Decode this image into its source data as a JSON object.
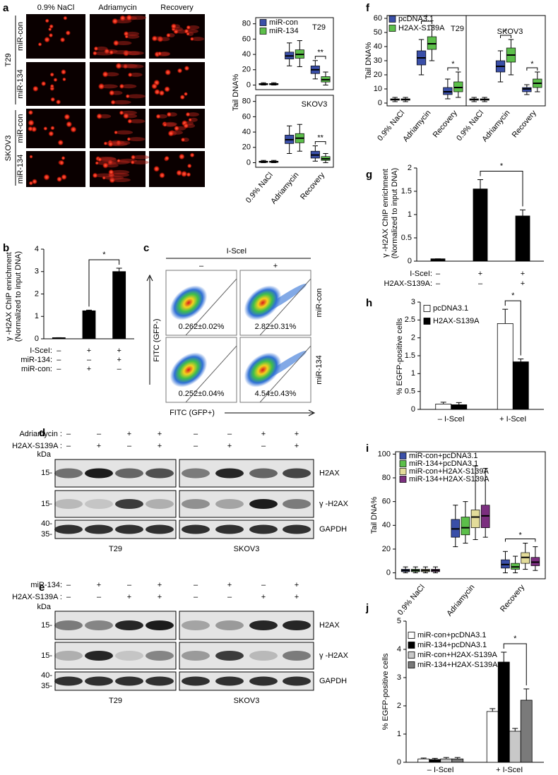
{
  "panel_labels": [
    "a",
    "b",
    "c",
    "d",
    "e",
    "f",
    "g",
    "h",
    "i",
    "j"
  ],
  "comet_assay": {
    "columns": [
      "0.9% NaCl",
      "Adriamycin",
      "Recovery"
    ],
    "rows": [
      "miR-con",
      "miR-134",
      "miR-con",
      "miR-134"
    ],
    "groups": [
      "T29",
      "SKOV3"
    ]
  },
  "flow": {
    "header": "I-SceI",
    "columns": [
      "–",
      "+"
    ],
    "rows": [
      "miR-con",
      "miR-134"
    ],
    "values": [
      [
        "0.262±0.02%",
        "2.82±0.31%"
      ],
      [
        "0.252±0.04%",
        "4.54±0.43%"
      ]
    ],
    "y_label": "FITC (GFP-)",
    "x_label": "FITC (GFP+)"
  },
  "western_d": {
    "conditions": [
      {
        "label": "Adriamycin :",
        "marks": [
          "–",
          "–",
          "+",
          "+",
          "–",
          "–",
          "+",
          "+"
        ]
      },
      {
        "label": "H2AX-S139A :",
        "marks": [
          "–",
          "+",
          "–",
          "+",
          "–",
          "+",
          "–",
          "+"
        ]
      }
    ],
    "unit": "kDa",
    "rows": [
      {
        "protein": "H2AX",
        "markers": [
          "15-"
        ]
      },
      {
        "protein": "γ -H2AX",
        "markers": [
          "15-"
        ]
      },
      {
        "protein": "GAPDH",
        "markers": [
          "40-",
          "35-"
        ]
      }
    ],
    "cell_lines": [
      "T29",
      "SKOV3"
    ]
  },
  "western_e": {
    "conditions": [
      {
        "label": "miR-134:",
        "marks": [
          "–",
          "+",
          "–",
          "+",
          "–",
          "+",
          "–",
          "+"
        ]
      },
      {
        "label": "H2AX-S139A :",
        "marks": [
          "–",
          "–",
          "+",
          "+",
          "–",
          "–",
          "+",
          "+"
        ]
      }
    ],
    "unit": "kDa",
    "rows": [
      {
        "protein": "H2AX",
        "markers": [
          "15-"
        ]
      },
      {
        "protein": "γ -H2AX",
        "markers": [
          "15-"
        ]
      },
      {
        "protein": "GAPDH",
        "markers": [
          "40-",
          "35-"
        ]
      }
    ],
    "cell_lines": [
      "T29",
      "SKOV3"
    ]
  },
  "chart_data": [
    {
      "type": "box",
      "title": "T29",
      "y_label": [
        "Tail DNA%"
      ],
      "ylim": [
        -6,
        88
      ],
      "yticks": [
        0,
        20,
        40,
        60,
        80
      ],
      "annotations": [
        "**"
      ],
      "series": [
        {
          "name": "miR-con",
          "color": "#3a4fa8",
          "values": [
            {
              "min": 0,
              "q1": 0.5,
              "median": 1,
              "q3": 2,
              "max": 3
            },
            {
              "min": 25,
              "q1": 34,
              "median": 38,
              "q3": 43,
              "max": 55
            },
            {
              "min": 8,
              "q1": 15,
              "median": 20,
              "q3": 25,
              "max": 32
            }
          ]
        },
        {
          "name": "miR-134",
          "color": "#5cbf4a",
          "values": [
            {
              "min": 0,
              "q1": 0.5,
              "median": 1,
              "q3": 2,
              "max": 3
            },
            {
              "min": 24,
              "q1": 35,
              "median": 40,
              "q3": 46,
              "max": 58
            },
            {
              "min": 0,
              "q1": 4,
              "median": 7,
              "q3": 11,
              "max": 17
            }
          ]
        }
      ]
    },
    {
      "type": "box",
      "title": "SKOV3",
      "categories": [
        "0.9% NaCl",
        "Adriamycin",
        "Recovery"
      ],
      "ylim": [
        -6,
        88
      ],
      "yticks": [
        0,
        20,
        40,
        60,
        80
      ],
      "annotations": [
        "**"
      ],
      "series": [
        {
          "color": "#3a4fa8",
          "values": [
            {
              "min": 0,
              "q1": 0.5,
              "median": 1,
              "q3": 2,
              "max": 3
            },
            {
              "min": 12,
              "q1": 25,
              "median": 30,
              "q3": 36,
              "max": 48
            },
            {
              "min": 2,
              "q1": 6,
              "median": 10,
              "q3": 15,
              "max": 22
            }
          ]
        },
        {
          "color": "#5cbf4a",
          "values": [
            {
              "min": 0,
              "q1": 0.5,
              "median": 1,
              "q3": 2,
              "max": 3
            },
            {
              "min": 15,
              "q1": 26,
              "median": 32,
              "q3": 38,
              "max": 50
            },
            {
              "min": 0,
              "q1": 3,
              "median": 5,
              "q3": 8,
              "max": 12
            }
          ]
        }
      ]
    },
    {
      "type": "box",
      "title": "T29",
      "y_label": [
        "Tail DNA%"
      ],
      "categories": [
        "0.9% NaCl",
        "Adriamycin",
        "Recovery"
      ],
      "ylim": [
        -2,
        62
      ],
      "yticks": [
        0,
        10,
        20,
        30,
        40,
        50,
        60
      ],
      "annotations": [
        "*",
        "*"
      ],
      "series": [
        {
          "name": "pcDNA3.1",
          "color": "#3a4fa8",
          "values": [
            {
              "min": 1,
              "q1": 2,
              "median": 2.5,
              "q3": 3,
              "max": 4
            },
            {
              "min": 20,
              "q1": 27,
              "median": 32,
              "q3": 37,
              "max": 45
            },
            {
              "min": 3,
              "q1": 6,
              "median": 8,
              "q3": 11,
              "max": 17
            }
          ]
        },
        {
          "name": "H2AX-S139A",
          "color": "#5cbf4a",
          "values": [
            {
              "min": 1,
              "q1": 2,
              "median": 2.5,
              "q3": 3,
              "max": 4
            },
            {
              "min": 30,
              "q1": 38,
              "median": 42,
              "q3": 47,
              "max": 55
            },
            {
              "min": 4,
              "q1": 8,
              "median": 11,
              "q3": 15,
              "max": 22
            }
          ]
        }
      ]
    },
    {
      "type": "box",
      "title": "SKOV3",
      "categories": [
        "0.9% NaCl",
        "Adriamycin",
        "Recovery"
      ],
      "ylim": [
        -2,
        62
      ],
      "annotations": [
        "*",
        "*"
      ],
      "series": [
        {
          "color": "#3a4fa8",
          "values": [
            {
              "min": 1,
              "q1": 2,
              "median": 2.5,
              "q3": 3,
              "max": 4
            },
            {
              "min": 15,
              "q1": 22,
              "median": 26,
              "q3": 30,
              "max": 37
            },
            {
              "min": 6,
              "q1": 8,
              "median": 10,
              "q3": 11,
              "max": 13
            }
          ]
        },
        {
          "color": "#5cbf4a",
          "values": [
            {
              "min": 1,
              "q1": 2,
              "median": 2.5,
              "q3": 3,
              "max": 4
            },
            {
              "min": 20,
              "q1": 29,
              "median": 34,
              "q3": 39,
              "max": 45
            },
            {
              "min": 8,
              "q1": 11,
              "median": 14,
              "q3": 17,
              "max": 22
            }
          ]
        }
      ]
    },
    {
      "type": "box",
      "y_label": [
        "Tail DNA%"
      ],
      "categories": [
        "0.9% NaCl",
        "Adriamycin",
        "Recovery"
      ],
      "ylim": [
        -5,
        102
      ],
      "yticks": [
        0,
        20,
        40,
        60,
        80,
        100
      ],
      "annotations": [
        "*"
      ],
      "series": [
        {
          "name": "miR-con+pcDNA3.1",
          "color": "#3a4fa8",
          "values": [
            {
              "min": 0,
              "q1": 1,
              "median": 2,
              "q3": 3,
              "max": 5
            },
            {
              "min": 22,
              "q1": 30,
              "median": 37,
              "q3": 45,
              "max": 57
            },
            {
              "min": 0,
              "q1": 4,
              "median": 7,
              "q3": 11,
              "max": 18
            }
          ]
        },
        {
          "name": "miR-134+pcDNA3.1",
          "color": "#5cbf4a",
          "values": [
            {
              "min": 0,
              "q1": 1,
              "median": 2,
              "q3": 3,
              "max": 5
            },
            {
              "min": 25,
              "q1": 32,
              "median": 38,
              "q3": 47,
              "max": 60
            },
            {
              "min": 0,
              "q1": 3,
              "median": 5,
              "q3": 8,
              "max": 14
            }
          ]
        },
        {
          "name": "miR-con+H2AX-S139A",
          "color": "#e3dc9a",
          "values": [
            {
              "min": 0,
              "q1": 1,
              "median": 2,
              "q3": 3,
              "max": 5
            },
            {
              "min": 28,
              "q1": 38,
              "median": 47,
              "q3": 53,
              "max": 90
            },
            {
              "min": 3,
              "q1": 8,
              "median": 13,
              "q3": 17,
              "max": 25
            }
          ]
        },
        {
          "name": "miR-134+H2AX-S139A",
          "color": "#7b2f7f",
          "values": [
            {
              "min": 0,
              "q1": 1,
              "median": 2,
              "q3": 3,
              "max": 5
            },
            {
              "min": 30,
              "q1": 38,
              "median": 48,
              "q3": 57,
              "max": 88
            },
            {
              "min": 2,
              "q1": 6,
              "median": 9,
              "q3": 13,
              "max": 22
            }
          ]
        }
      ]
    },
    {
      "type": "bar",
      "y_label": [
        "γ -H2AX ChIP enrichment",
        "(Normalized to input DNA)"
      ],
      "ylim": [
        0,
        4
      ],
      "yticks": [
        0,
        1,
        2,
        3,
        4
      ],
      "values": [
        0.05,
        1.25,
        3.0
      ],
      "errors": [
        0,
        0.03,
        0.15
      ],
      "color": "#000000",
      "annotations": [
        "*"
      ],
      "conditions": [
        {
          "label": "I-SceI:",
          "marks": [
            "–",
            "+",
            "+"
          ]
        },
        {
          "label": "miR-134:",
          "marks": [
            "–",
            "–",
            "+"
          ]
        },
        {
          "label": "miR-con:",
          "marks": [
            "–",
            "+",
            "–"
          ]
        }
      ]
    },
    {
      "type": "bar",
      "y_label": [
        "γ -H2AX ChIP enrichment",
        "(Normalized to input DNA)"
      ],
      "ylim": [
        0,
        2
      ],
      "yticks": [
        0,
        0.5,
        1,
        1.5,
        2
      ],
      "values": [
        0.05,
        1.55,
        0.97
      ],
      "errors": [
        0,
        0.2,
        0.13
      ],
      "color": "#000000",
      "annotations": [
        "*"
      ],
      "conditions": [
        {
          "label": "I-SceI:",
          "marks": [
            "–",
            "+",
            "+"
          ]
        },
        {
          "label": "H2AX-S139A:",
          "marks": [
            "–",
            "–",
            "+"
          ]
        }
      ]
    },
    {
      "type": "bar",
      "y_label": [
        "% EGFP-positive cells"
      ],
      "ylim": [
        0,
        3
      ],
      "yticks": [
        0,
        0.5,
        1,
        1.5,
        2,
        2.5,
        3
      ],
      "categories": [
        "– I-SceI",
        "+ I-SceI"
      ],
      "annotations": [
        "*"
      ],
      "series": [
        {
          "name": "pcDNA3.1",
          "color": "#ffffff",
          "values": [
            0.15,
            2.4
          ],
          "errors": [
            0.05,
            0.4
          ]
        },
        {
          "name": "H2AX-S139A",
          "color": "#000000",
          "values": [
            0.13,
            1.33
          ],
          "errors": [
            0.06,
            0.08
          ]
        }
      ]
    },
    {
      "type": "bar",
      "y_label": [
        "% EGFP-positive cells"
      ],
      "ylim": [
        0,
        5
      ],
      "yticks": [
        0,
        1,
        2,
        3,
        4,
        5
      ],
      "categories": [
        "– I-SceI",
        "+ I-SceI"
      ],
      "annotations": [
        "*"
      ],
      "series": [
        {
          "name": "miR-con+pcDNA3.1",
          "color": "#ffffff",
          "values": [
            0.12,
            1.8
          ],
          "errors": [
            0.03,
            0.1
          ]
        },
        {
          "name": "miR-134+pcDNA3.1",
          "color": "#000000",
          "values": [
            0.1,
            3.55
          ],
          "errors": [
            0.04,
            0.35
          ]
        },
        {
          "name": "miR-con+H2AX-S139A",
          "color": "#c8c8c8",
          "values": [
            0.12,
            1.1
          ],
          "errors": [
            0.05,
            0.1
          ]
        },
        {
          "name": "miR-134+H2AX-S139A",
          "color": "#7a7a7a",
          "values": [
            0.12,
            2.2
          ],
          "errors": [
            0.05,
            0.4
          ]
        }
      ]
    }
  ]
}
